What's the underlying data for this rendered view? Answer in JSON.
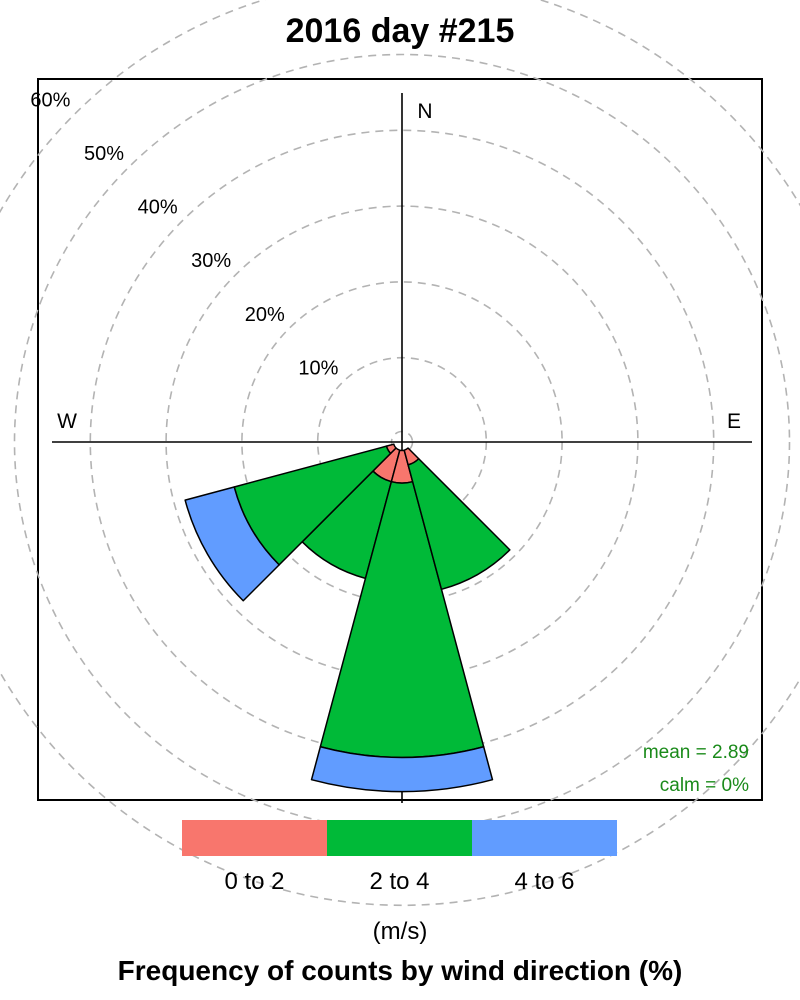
{
  "chart_data": {
    "type": "windrose",
    "title": "2016 day #215",
    "xlabel": "Frequency of counts by wind direction (%)",
    "directions": [
      "N",
      "E",
      "W"
    ],
    "radial_ticks": [
      "10%",
      "20%",
      "30%",
      "40%",
      "50%",
      "60%"
    ],
    "radial_tick_values": [
      10,
      20,
      30,
      40,
      50,
      60
    ],
    "sectors": [
      {
        "direction": 210,
        "cumulative": [
          4.3,
          17.5,
          17.5
        ]
      },
      {
        "direction": 180,
        "cumulative": [
          4.3,
          40.5,
          45.0
        ]
      },
      {
        "direction": 150,
        "cumulative": [
          2.0,
          19.0,
          19.0
        ]
      },
      {
        "direction": 240,
        "cumulative": [
          1.0,
          21.8,
          28.5
        ]
      }
    ],
    "speed_bins": [
      "0 to 2",
      "2 to 4",
      "4 to 6"
    ],
    "units": "(m/s)",
    "stats": {
      "mean": "mean = 2.89",
      "calm": "calm = 0%"
    },
    "colors": {
      "bin1": "#F8766D",
      "bin2": "#00BA38",
      "bin3": "#619CFF",
      "stat_text": "#1a8a1a"
    }
  }
}
